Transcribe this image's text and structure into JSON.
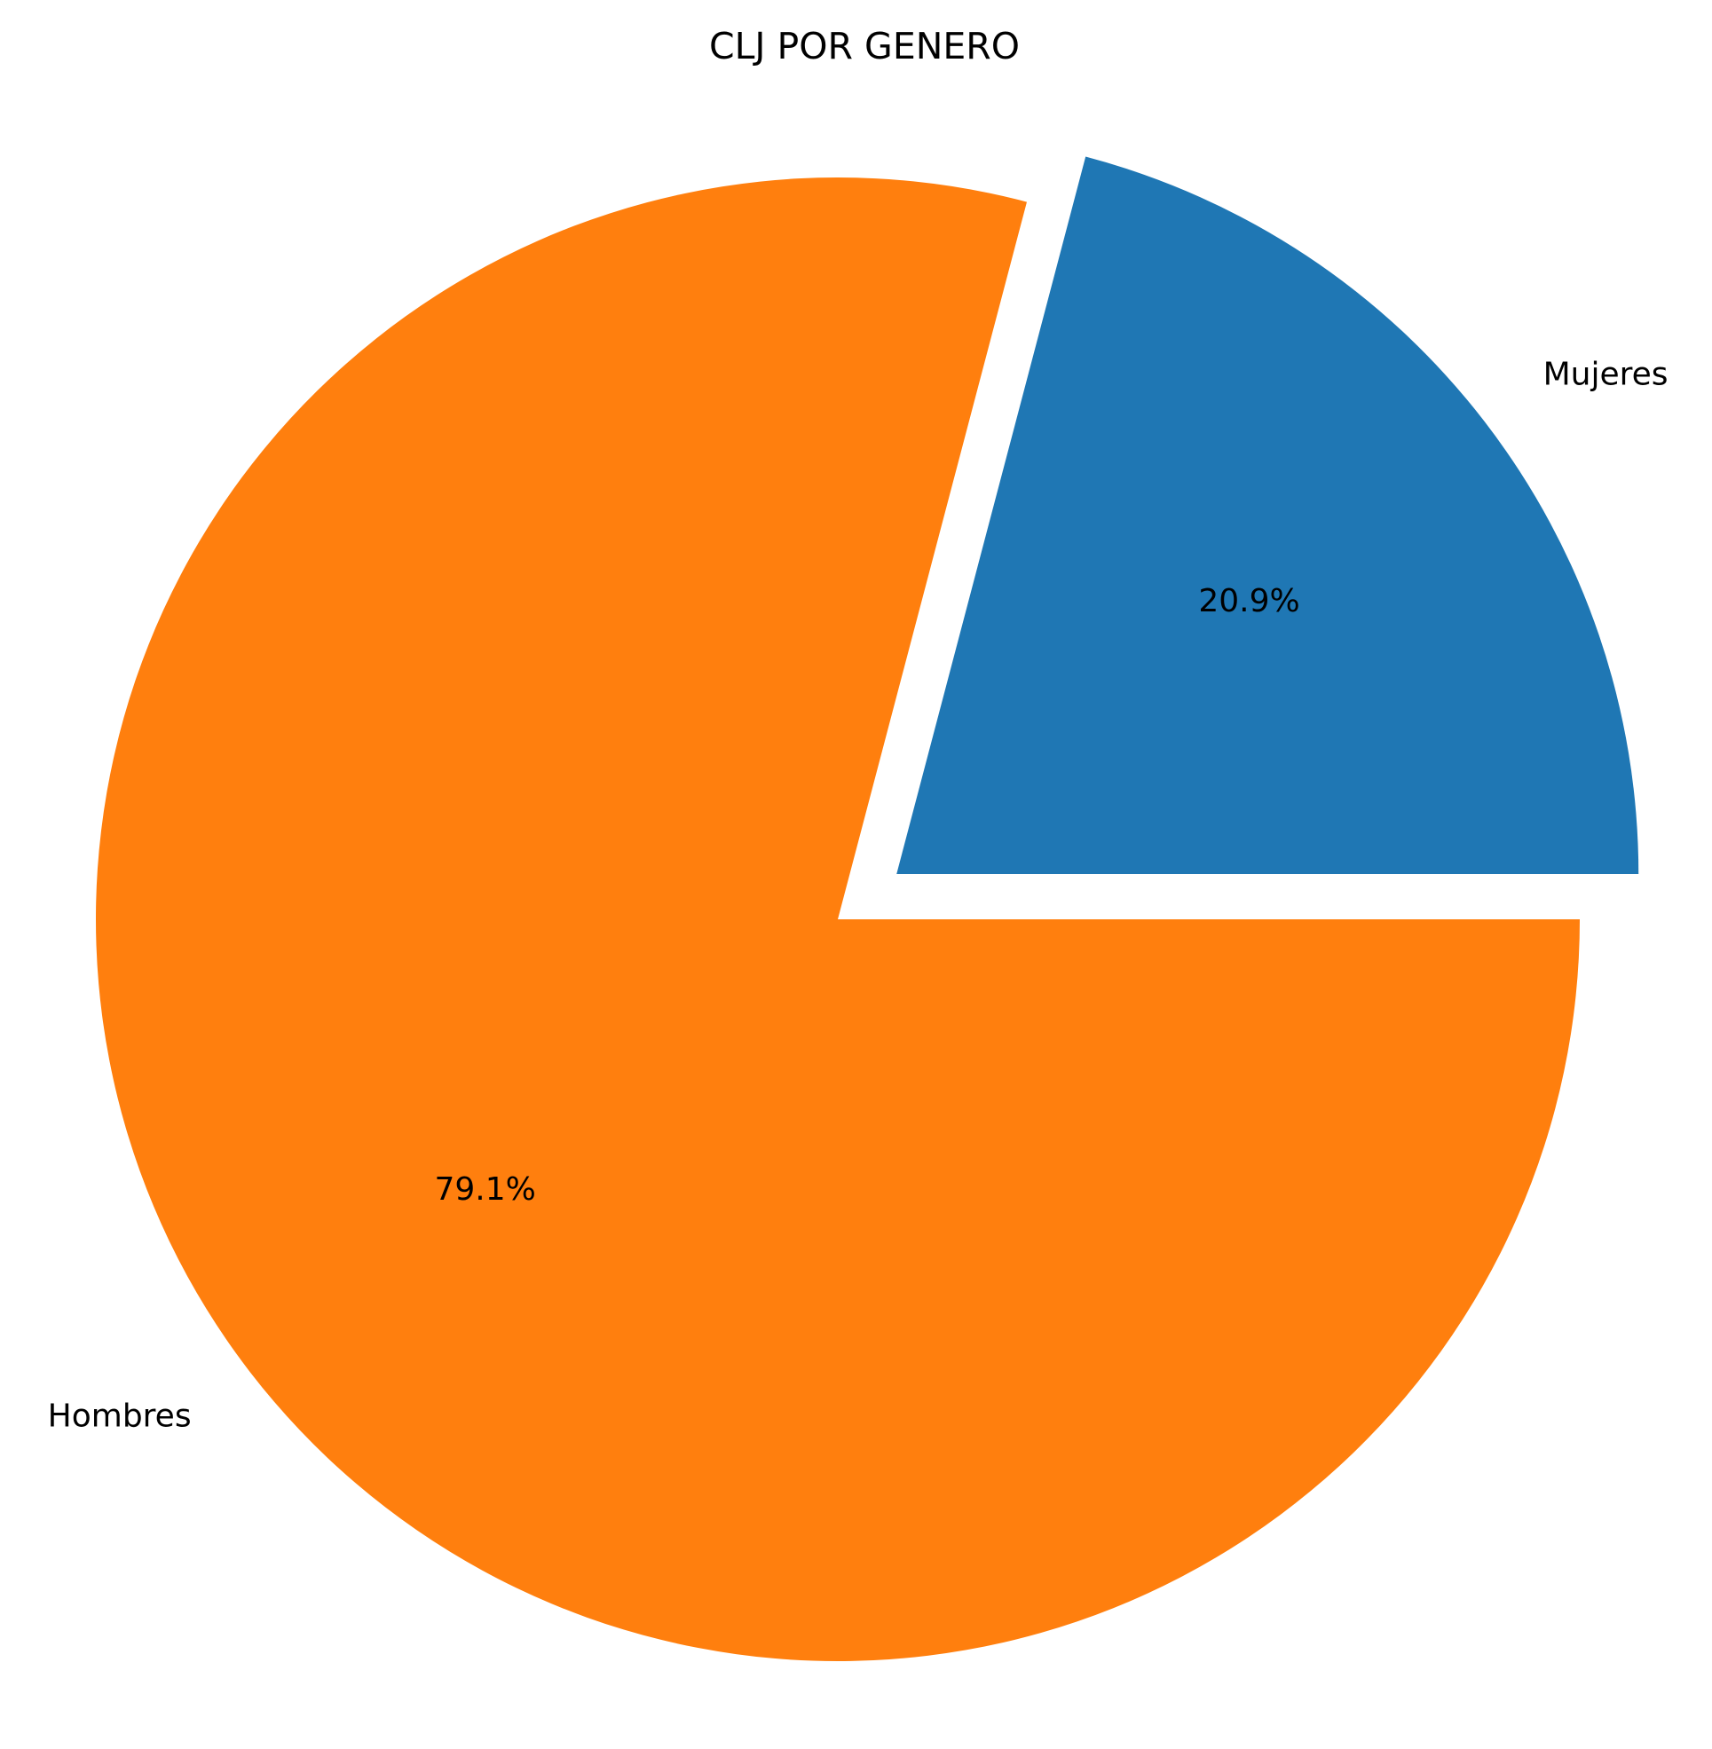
{
  "chart_data": {
    "type": "pie",
    "title": "CLJ POR GENERO",
    "slices": [
      {
        "label": "Mujeres",
        "percent": 20.9,
        "pct_label": "20.9%",
        "color": "#1f77b4",
        "exploded": true
      },
      {
        "label": "Hombres",
        "percent": 79.1,
        "pct_label": "79.1%",
        "color": "#ff7f0e",
        "exploded": false
      }
    ],
    "start_angle": 0,
    "direction": "counterclockwise"
  }
}
